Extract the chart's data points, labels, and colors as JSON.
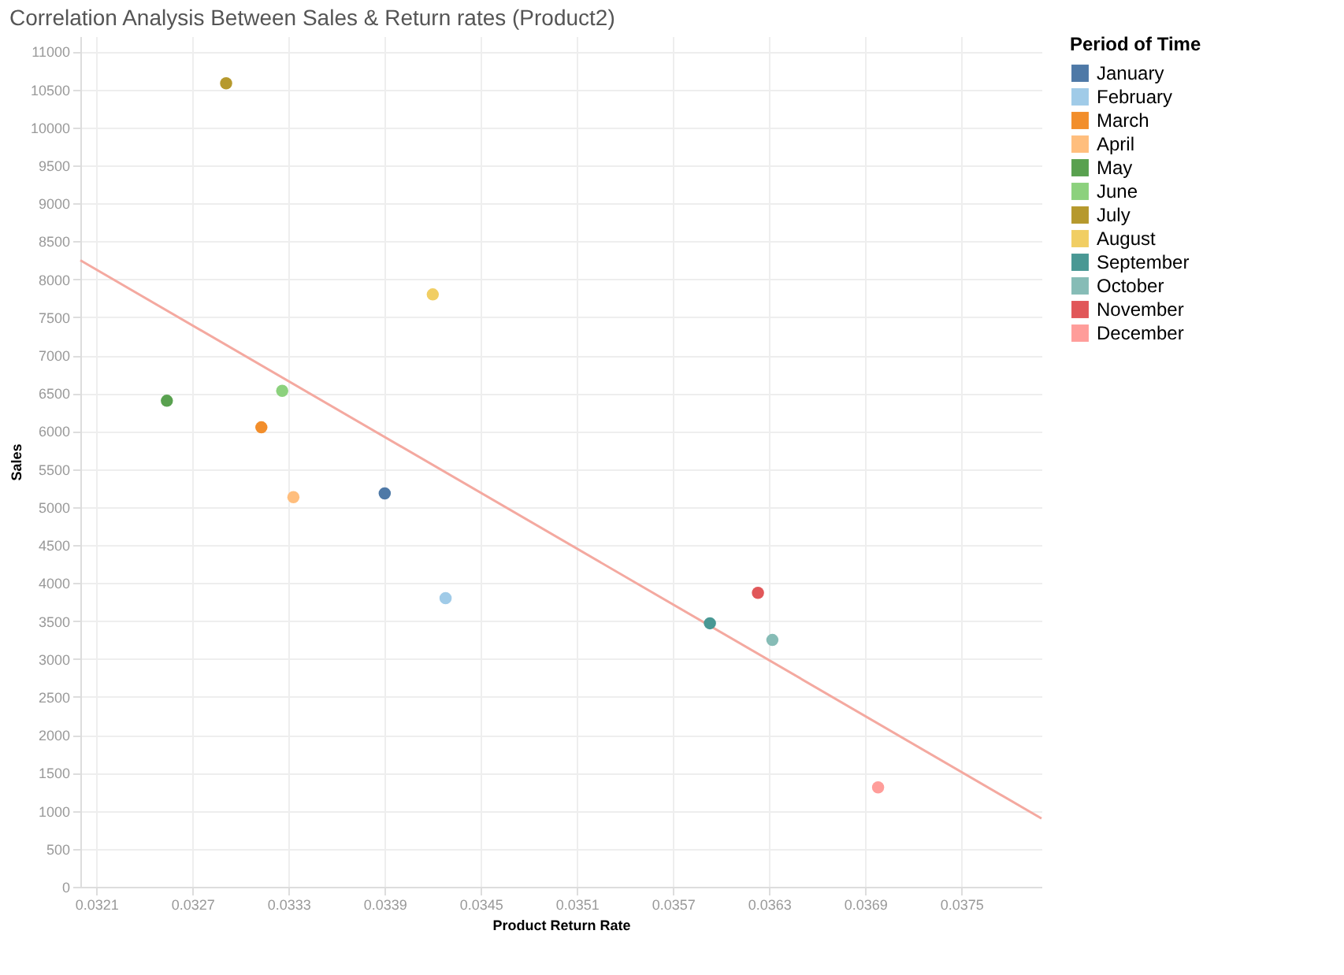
{
  "chart_data": {
    "type": "scatter",
    "title": "Correlation Analysis Between Sales & Return rates (Product2)",
    "xlabel": "Product Return Rate",
    "ylabel": "Sales",
    "legend_title": "Period of Time",
    "series": [
      {
        "name": "January",
        "color": "#4e79a7",
        "x": [
          0.0339
        ],
        "values": [
          5180
        ]
      },
      {
        "name": "February",
        "color": "#a0cbe8",
        "x": [
          0.03428
        ],
        "values": [
          3800
        ]
      },
      {
        "name": "March",
        "color": "#f28e2b",
        "x": [
          0.03313
        ],
        "values": [
          6050
        ]
      },
      {
        "name": "April",
        "color": "#ffbe7d",
        "x": [
          0.03333
        ],
        "values": [
          5130
        ]
      },
      {
        "name": "May",
        "color": "#59a14f",
        "x": [
          0.03254
        ],
        "values": [
          6400
        ]
      },
      {
        "name": "June",
        "color": "#8cd17d",
        "x": [
          0.03326
        ],
        "values": [
          6530
        ]
      },
      {
        "name": "July",
        "color": "#b6992d",
        "x": [
          0.03291
        ],
        "values": [
          10580
        ]
      },
      {
        "name": "August",
        "color": "#f1ce63",
        "x": [
          0.0342
        ],
        "values": [
          7800
        ]
      },
      {
        "name": "September",
        "color": "#499894",
        "x": [
          0.03593
        ],
        "values": [
          3470
        ]
      },
      {
        "name": "October",
        "color": "#86bcb6",
        "x": [
          0.03632
        ],
        "values": [
          3250
        ]
      },
      {
        "name": "November",
        "color": "#e15759",
        "x": [
          0.03623
        ],
        "values": [
          3870
        ]
      },
      {
        "name": "December",
        "color": "#ff9d9a",
        "x": [
          0.03698
        ],
        "values": [
          1310
        ]
      },
      {
        "type": "line",
        "marker": "none",
        "color": "#f4a9a0",
        "x": [
          0.032,
          0.038
        ],
        "values": [
          8250,
          900
        ]
      }
    ],
    "xlim": [
      0.032,
      0.038
    ],
    "xticks": [
      0.0321,
      0.0327,
      0.0333,
      0.0339,
      0.0345,
      0.0351,
      0.0357,
      0.0363,
      0.0369,
      0.0375
    ],
    "ylim": [
      0,
      11200
    ],
    "yticks": [
      0,
      500,
      1000,
      1500,
      2000,
      2500,
      3000,
      3500,
      4000,
      4500,
      5000,
      5500,
      6000,
      6500,
      7000,
      7500,
      8000,
      8500,
      9000,
      9500,
      10000,
      10500,
      11000
    ],
    "grid": true,
    "legend": "right",
    "marker": "circle"
  }
}
